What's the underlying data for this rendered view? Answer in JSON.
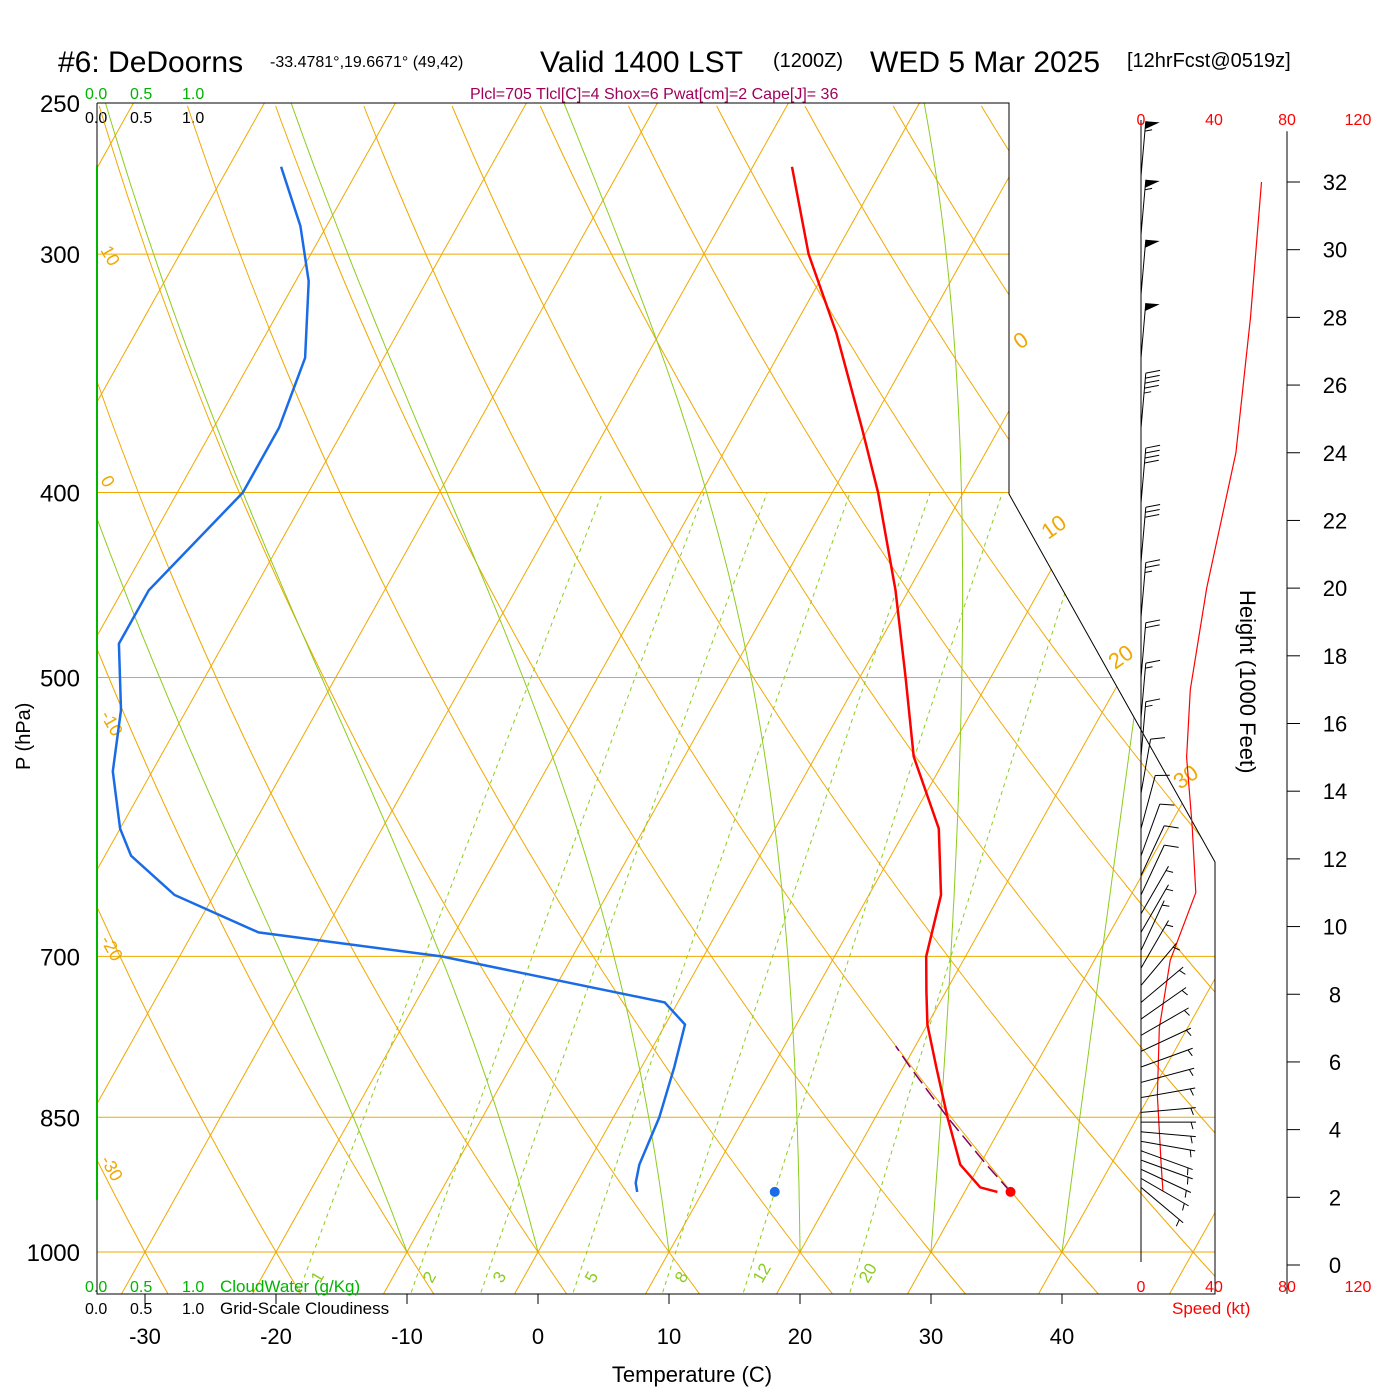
{
  "header": {
    "station": "#6: DeDoorns",
    "coords": "-33.4781°,19.6671° (49,42)",
    "valid": "Valid 1400 LST",
    "zulu": "(1200Z)",
    "date": "WED 5 Mar 2025",
    "fcst": "[12hrFcst@0519z]",
    "indices": "Plcl=705 Tlcl[C]=4 Shox=6 Pwat[cm]=2 Cape[J]= 36"
  },
  "colors": {
    "temperature": "#ff0000",
    "dewpoint": "#1a6be6",
    "isobar_isotherm": "#f0a800",
    "mixing_ratio": "#8ccc1e",
    "parcel": "#800060",
    "cloudwater": "#00b400",
    "indices": "#a0005a",
    "wind_speed": "#ff0000"
  },
  "labels": {
    "ylabel": "P (hPa)",
    "xlabel": "Temperature (C)",
    "height_label": "Height (1000 Feet)",
    "cloudwater": "CloudWater (g/Kg)",
    "cloudiness": "Grid-Scale Cloudiness",
    "speed": "Speed (kt)"
  },
  "scales": {
    "cloud_top_green": [
      "0.0",
      "0.5",
      "1.0"
    ],
    "cloud_top_black": [
      "0.0",
      "0.5",
      "1.0"
    ],
    "cloud_bottom_green": [
      "0.0",
      "0.5",
      "1.0"
    ],
    "cloud_bottom_black": [
      "0.0",
      "0.5",
      "1.0"
    ],
    "speed_top": [
      "0",
      "40",
      "80",
      "120"
    ],
    "speed_bottom": [
      "0",
      "40",
      "80",
      "120"
    ]
  },
  "chart_data": {
    "type": "line",
    "title": "Skew-T log-P sounding",
    "x_ticks": [
      -30,
      -20,
      -10,
      0,
      10,
      20,
      30,
      40
    ],
    "y_ticks_hpa": [
      250,
      300,
      400,
      500,
      700,
      850,
      1000
    ],
    "height_ticks_kft": [
      0,
      2,
      4,
      6,
      8,
      10,
      12,
      14,
      16,
      18,
      20,
      22,
      24,
      26,
      28,
      30,
      32
    ],
    "dry_adiabat_labels": [
      "10",
      "0",
      "-10",
      "-20",
      "-30"
    ],
    "moist_adiabat_labels": [
      "0",
      "10",
      "20",
      "30"
    ],
    "mixing_ratio_labels": [
      "1",
      "2",
      "3",
      "5",
      "8",
      "12",
      "20"
    ],
    "temperature": [
      {
        "p": 930,
        "t": 32.5
      },
      {
        "p": 925,
        "t": 31
      },
      {
        "p": 900,
        "t": 28.5
      },
      {
        "p": 850,
        "t": 25.5
      },
      {
        "p": 800,
        "t": 22.5
      },
      {
        "p": 760,
        "t": 20
      },
      {
        "p": 730,
        "t": 18.5
      },
      {
        "p": 700,
        "t": 17
      },
      {
        "p": 650,
        "t": 15.5
      },
      {
        "p": 600,
        "t": 12.5
      },
      {
        "p": 550,
        "t": 7.5
      },
      {
        "p": 500,
        "t": 3.5
      },
      {
        "p": 450,
        "t": -1
      },
      {
        "p": 400,
        "t": -6.5
      },
      {
        "p": 370,
        "t": -10.5
      },
      {
        "p": 330,
        "t": -16.5
      },
      {
        "p": 300,
        "t": -22
      },
      {
        "p": 270,
        "t": -27
      }
    ],
    "dewpoint": [
      {
        "p": 930,
        "td": 5
      },
      {
        "p": 920,
        "td": 4.5
      },
      {
        "p": 900,
        "td": 4
      },
      {
        "p": 850,
        "td": 3.5
      },
      {
        "p": 800,
        "td": 2.5
      },
      {
        "p": 760,
        "td": 1.5
      },
      {
        "p": 740,
        "td": -1
      },
      {
        "p": 700,
        "td": -20
      },
      {
        "p": 680,
        "td": -35
      },
      {
        "p": 650,
        "td": -43
      },
      {
        "p": 620,
        "td": -48
      },
      {
        "p": 600,
        "td": -50
      },
      {
        "p": 560,
        "td": -53
      },
      {
        "p": 520,
        "td": -55
      },
      {
        "p": 480,
        "td": -58
      },
      {
        "p": 450,
        "td": -58
      },
      {
        "p": 400,
        "td": -55
      },
      {
        "p": 370,
        "td": -55
      },
      {
        "p": 340,
        "td": -56
      },
      {
        "p": 310,
        "td": -59
      },
      {
        "p": 290,
        "td": -62
      },
      {
        "p": 270,
        "td": -66
      }
    ],
    "parcel": [
      {
        "p": 930,
        "t": 33.5
      },
      {
        "p": 900,
        "t": 30.5
      },
      {
        "p": 850,
        "t": 25.5
      },
      {
        "p": 800,
        "t": 20.5
      },
      {
        "p": 780,
        "t": 18.5
      }
    ],
    "surface_temp": {
      "p": 930,
      "t": 33.5
    },
    "surface_dewpoint": {
      "p": 930,
      "td": 15.5
    },
    "wind_speed_profile_kt": [
      {
        "h": 2.2,
        "s": 12
      },
      {
        "h": 3,
        "s": 11
      },
      {
        "h": 5,
        "s": 9
      },
      {
        "h": 7,
        "s": 10
      },
      {
        "h": 9,
        "s": 16
      },
      {
        "h": 11,
        "s": 30
      },
      {
        "h": 13,
        "s": 28
      },
      {
        "h": 15,
        "s": 25
      },
      {
        "h": 17,
        "s": 27
      },
      {
        "h": 20,
        "s": 36
      },
      {
        "h": 24,
        "s": 52
      },
      {
        "h": 28,
        "s": 60
      },
      {
        "h": 32,
        "s": 66
      }
    ],
    "wind_barbs": [
      {
        "p": 925,
        "dir": 230,
        "spd": 5
      },
      {
        "p": 915,
        "dir": 240,
        "spd": 5
      },
      {
        "p": 905,
        "dir": 245,
        "spd": 5
      },
      {
        "p": 895,
        "dir": 250,
        "spd": 5
      },
      {
        "p": 885,
        "dir": 250,
        "spd": 5
      },
      {
        "p": 875,
        "dir": 260,
        "spd": 5
      },
      {
        "p": 865,
        "dir": 265,
        "spd": 5
      },
      {
        "p": 855,
        "dir": 270,
        "spd": 5
      },
      {
        "p": 845,
        "dir": 275,
        "spd": 5
      },
      {
        "p": 830,
        "dir": 280,
        "spd": 5
      },
      {
        "p": 815,
        "dir": 285,
        "spd": 5
      },
      {
        "p": 800,
        "dir": 290,
        "spd": 5
      },
      {
        "p": 785,
        "dir": 295,
        "spd": 5
      },
      {
        "p": 770,
        "dir": 300,
        "spd": 5
      },
      {
        "p": 755,
        "dir": 305,
        "spd": 5
      },
      {
        "p": 740,
        "dir": 310,
        "spd": 5
      },
      {
        "p": 725,
        "dir": 320,
        "spd": 5
      },
      {
        "p": 710,
        "dir": 330,
        "spd": 5
      },
      {
        "p": 695,
        "dir": 335,
        "spd": 5
      },
      {
        "p": 680,
        "dir": 330,
        "spd": 5
      },
      {
        "p": 665,
        "dir": 330,
        "spd": 5
      },
      {
        "p": 650,
        "dir": 335,
        "spd": 10
      },
      {
        "p": 635,
        "dir": 335,
        "spd": 10
      },
      {
        "p": 620,
        "dir": 340,
        "spd": 10
      },
      {
        "p": 600,
        "dir": 345,
        "spd": 10
      },
      {
        "p": 575,
        "dir": 350,
        "spd": 10
      },
      {
        "p": 550,
        "dir": 355,
        "spd": 15
      },
      {
        "p": 525,
        "dir": 355,
        "spd": 15
      },
      {
        "p": 500,
        "dir": 355,
        "spd": 20
      },
      {
        "p": 465,
        "dir": 355,
        "spd": 25
      },
      {
        "p": 435,
        "dir": 355,
        "spd": 30
      },
      {
        "p": 405,
        "dir": 355,
        "spd": 40
      },
      {
        "p": 370,
        "dir": 355,
        "spd": 45
      },
      {
        "p": 340,
        "dir": 355,
        "spd": 50
      },
      {
        "p": 315,
        "dir": 355,
        "spd": 50
      },
      {
        "p": 293,
        "dir": 355,
        "spd": 55
      },
      {
        "p": 273,
        "dir": 355,
        "spd": 55
      }
    ]
  }
}
